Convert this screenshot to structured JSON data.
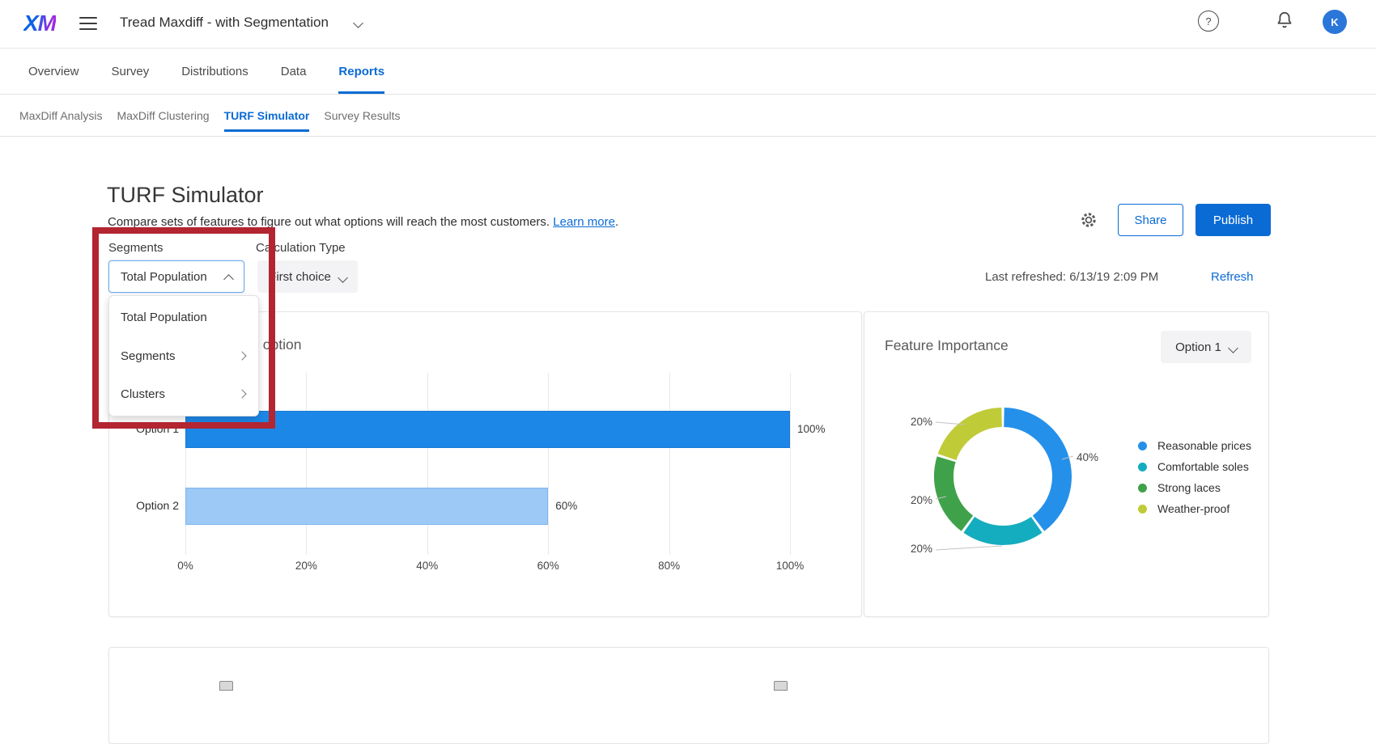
{
  "header": {
    "logo": "XM",
    "project_title": "Tread Maxdiff - with Segmentation",
    "avatar_initial": "K",
    "help_glyph": "?"
  },
  "nav": {
    "tabs": [
      {
        "label": "Overview",
        "active": false
      },
      {
        "label": "Survey",
        "active": false
      },
      {
        "label": "Distributions",
        "active": false
      },
      {
        "label": "Data",
        "active": false
      },
      {
        "label": "Reports",
        "active": true
      }
    ]
  },
  "subnav": {
    "items": [
      {
        "label": "MaxDiff Analysis",
        "active": false
      },
      {
        "label": "MaxDiff Clustering",
        "active": false
      },
      {
        "label": "TURF Simulator",
        "active": true
      },
      {
        "label": "Survey Results",
        "active": false
      }
    ]
  },
  "page": {
    "title": "TURF Simulator",
    "description": "Compare sets of features to figure out what options will reach the most customers.",
    "learn_more": "Learn more",
    "period": ".",
    "share_label": "Share",
    "publish_label": "Publish",
    "last_refreshed": "Last refreshed: 6/13/19 2:09 PM",
    "refresh_label": "Refresh"
  },
  "controls": {
    "segments_label": "Segments",
    "segments_value": "Total Population",
    "calc_label": "Calculation Type",
    "calc_value": "First choice",
    "menu_items": [
      {
        "label": "Total Population",
        "has_submenu": false
      },
      {
        "label": "Segments",
        "has_submenu": true
      },
      {
        "label": "Clusters",
        "has_submenu": true
      }
    ]
  },
  "colors": {
    "accent": "#0b6bd4",
    "annotation_red": "#b22531"
  },
  "chart_data": [
    {
      "type": "bar",
      "orientation": "horizontal",
      "title": "Reach by option",
      "categories": [
        "Option 1",
        "Option 2"
      ],
      "values": [
        100,
        60
      ],
      "value_labels": [
        "100%",
        "60%"
      ],
      "x_ticks": [
        "0%",
        "20%",
        "40%",
        "60%",
        "80%",
        "100%"
      ],
      "xlim": [
        0,
        100
      ],
      "grid": true,
      "bar_colors": [
        "#1d87e8",
        "#9cc9f5"
      ],
      "bar_borders": [
        "#1a79d0",
        "#7fb5ee"
      ]
    },
    {
      "type": "donut",
      "title": "Feature Importance",
      "selector_value": "Option 1",
      "labels": [
        "Reasonable prices",
        "Comfortable soles",
        "Strong laces",
        "Weather-proof"
      ],
      "values": [
        40,
        20,
        20,
        20
      ],
      "value_labels": [
        "40%",
        "20%",
        "20%",
        "20%"
      ],
      "colors": [
        "#2590ea",
        "#14adbf",
        "#3fa24a",
        "#c0cb38"
      ],
      "legend_position": "right"
    }
  ],
  "bottom_section": {}
}
